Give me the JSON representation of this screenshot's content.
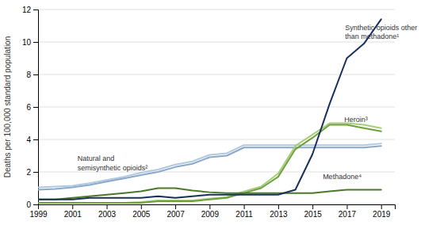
{
  "chart_data": {
    "type": "line",
    "ylabel": "Deaths per 100,000 standard population",
    "x": [
      1999,
      2000,
      2001,
      2002,
      2003,
      2004,
      2005,
      2006,
      2007,
      2008,
      2009,
      2010,
      2011,
      2012,
      2013,
      2014,
      2015,
      2016,
      2017,
      2018,
      2019
    ],
    "series": [
      {
        "color": "#b0c8e0",
        "values": [
          1.05,
          1.1,
          1.15,
          1.3,
          1.5,
          1.7,
          1.95,
          2.15,
          2.45,
          2.65,
          3.05,
          3.15,
          3.65,
          3.65,
          3.65,
          3.65,
          3.65,
          3.65,
          3.65,
          3.65,
          3.75
        ]
      },
      {
        "color": "#8aa8c8",
        "values": [
          0.9,
          0.95,
          1.05,
          1.2,
          1.4,
          1.6,
          1.8,
          2.0,
          2.3,
          2.5,
          2.9,
          3.0,
          3.5,
          3.5,
          3.5,
          3.5,
          3.5,
          3.5,
          3.5,
          3.5,
          3.6
        ]
      },
      {
        "color": "#a8cc7a",
        "values": [
          0.1,
          0.1,
          0.1,
          0.1,
          0.1,
          0.1,
          0.15,
          0.25,
          0.25,
          0.25,
          0.35,
          0.45,
          0.8,
          1.1,
          1.9,
          3.6,
          4.3,
          5.0,
          5.0,
          4.9,
          4.7
        ]
      },
      {
        "color": "#6da03a",
        "values": [
          0.1,
          0.1,
          0.1,
          0.1,
          0.1,
          0.1,
          0.1,
          0.2,
          0.2,
          0.2,
          0.3,
          0.4,
          0.7,
          1.0,
          1.7,
          3.4,
          4.1,
          4.9,
          4.9,
          4.7,
          4.5
        ]
      },
      {
        "color": "#4a7a28",
        "values": [
          0.3,
          0.3,
          0.4,
          0.5,
          0.6,
          0.7,
          0.8,
          1.0,
          1.0,
          0.85,
          0.75,
          0.7,
          0.7,
          0.7,
          0.7,
          0.7,
          0.7,
          0.8,
          0.9,
          0.9,
          0.9
        ]
      },
      {
        "color": "#1a2f5e",
        "values": [
          0.3,
          0.3,
          0.3,
          0.4,
          0.4,
          0.4,
          0.4,
          0.5,
          0.4,
          0.5,
          0.6,
          0.6,
          0.6,
          0.6,
          0.6,
          0.9,
          3.1,
          6.2,
          9.0,
          9.9,
          11.4
        ]
      }
    ],
    "annotations": [
      {
        "text": "Natural and\nsemisynthetic opioids²",
        "x": 2001.3,
        "y": 2.55
      },
      {
        "text": "Synthetic opioids other\nthan methadone¹",
        "x": 2016.9,
        "y": 10.6
      },
      {
        "text": "Heroin³",
        "x": 2016.85,
        "y": 5.25
      },
      {
        "text": "Methadone⁴",
        "x": 2015.6,
        "y": 1.72
      }
    ],
    "xlim": [
      1999,
      2019.8
    ],
    "xticks": [
      1999,
      2001,
      2003,
      2005,
      2007,
      2009,
      2011,
      2013,
      2015,
      2017,
      2019
    ],
    "ylim": [
      0,
      12
    ],
    "yticks": [
      0,
      2,
      4,
      6,
      8,
      10,
      12
    ],
    "grid": true
  }
}
